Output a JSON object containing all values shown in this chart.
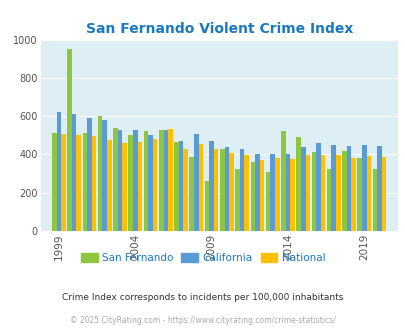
{
  "title": "San Fernando Violent Crime Index",
  "title_color": "#1a7abf",
  "background_color": "#ddeef5",
  "years": [
    1999,
    2000,
    2001,
    2002,
    2003,
    2004,
    2005,
    2006,
    2007,
    2008,
    2009,
    2010,
    2011,
    2012,
    2013,
    2014,
    2015,
    2016,
    2017,
    2018,
    2019,
    2020
  ],
  "san_fernando": [
    510,
    950,
    510,
    600,
    540,
    500,
    525,
    530,
    465,
    385,
    260,
    430,
    325,
    360,
    310,
    520,
    490,
    415,
    325,
    420,
    380,
    325
  ],
  "california": [
    620,
    610,
    590,
    580,
    530,
    530,
    500,
    530,
    470,
    505,
    470,
    440,
    430,
    400,
    400,
    400,
    440,
    460,
    450,
    445,
    450,
    445
  ],
  "national": [
    505,
    500,
    495,
    475,
    460,
    465,
    480,
    535,
    430,
    455,
    430,
    405,
    395,
    370,
    380,
    375,
    395,
    395,
    395,
    380,
    390,
    385
  ],
  "sf_color": "#8dc63f",
  "ca_color": "#5b9bd5",
  "nat_color": "#ffc000",
  "tick_label_color": "#555555",
  "footer_color": "#aaaaaa",
  "subtitle": "Crime Index corresponds to incidents per 100,000 inhabitants",
  "footer": "© 2025 CityRating.com - https://www.cityrating.com/crime-statistics/",
  "ylim": [
    0,
    1000
  ],
  "yticks": [
    0,
    200,
    400,
    600,
    800,
    1000
  ],
  "xtick_positions": [
    1999,
    2004,
    2009,
    2014,
    2019
  ],
  "bar_width": 0.3,
  "xlim_min": 1997.8,
  "xlim_max": 2021.2
}
